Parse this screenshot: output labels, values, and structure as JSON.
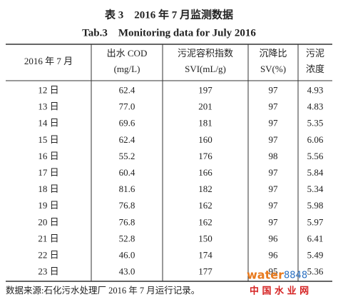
{
  "title": {
    "zh": "表 3　2016 年 7 月监测数据",
    "en": "Tab.3　Monitoring data for July 2016"
  },
  "table": {
    "header": [
      [
        "2016 年 7 月"
      ],
      [
        "出水 COD",
        "(mg/L)"
      ],
      [
        "污泥容积指数",
        "SVI(mL/g)"
      ],
      [
        "沉降比",
        "SV(%)"
      ],
      [
        "污泥",
        "浓度"
      ]
    ],
    "rows": [
      [
        "12 日",
        "62.4",
        "197",
        "97",
        "4.93"
      ],
      [
        "13 日",
        "77.0",
        "201",
        "97",
        "4.83"
      ],
      [
        "14 日",
        "69.6",
        "181",
        "97",
        "5.35"
      ],
      [
        "15 日",
        "62.4",
        "160",
        "97",
        "6.06"
      ],
      [
        "16 日",
        "55.2",
        "176",
        "98",
        "5.56"
      ],
      [
        "17 日",
        "60.4",
        "166",
        "97",
        "5.84"
      ],
      [
        "18 日",
        "81.6",
        "182",
        "97",
        "5.34"
      ],
      [
        "19 日",
        "76.8",
        "162",
        "97",
        "5.98"
      ],
      [
        "20 日",
        "76.8",
        "162",
        "97",
        "5.97"
      ],
      [
        "21 日",
        "52.8",
        "150",
        "96",
        "6.41"
      ],
      [
        "22 日",
        "46.0",
        "174",
        "96",
        "5.49"
      ],
      [
        "23 日",
        "43.0",
        "177",
        "95",
        "5.36"
      ]
    ]
  },
  "source": "数据来源:石化污水处理厂 2016 年 7 月运行记录。",
  "watermark": {
    "logo_a": "water",
    "logo_b": "8848",
    "site": "中 国 水 业 网"
  }
}
